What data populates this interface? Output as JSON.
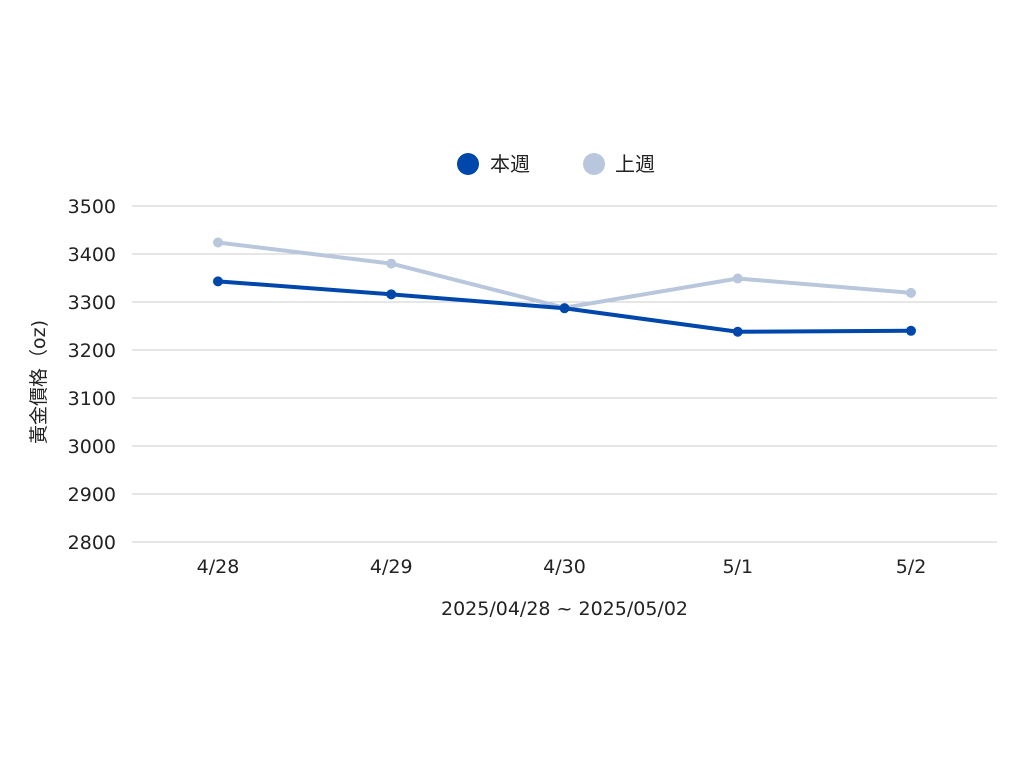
{
  "chart_data": {
    "type": "line",
    "categories": [
      "4/28",
      "4/29",
      "4/30",
      "5/1",
      "5/2"
    ],
    "series": [
      {
        "name": "本週",
        "color": "#0047ab",
        "values": [
          3343,
          3316,
          3287,
          3238,
          3240
        ]
      },
      {
        "name": "上週",
        "color": "#b8c7dc",
        "values": [
          3424,
          3380,
          3288,
          3349,
          3319
        ]
      }
    ],
    "xlabel": "2025/04/28 ~ 2025/05/02",
    "ylabel": "黃金價格（oz)",
    "ylim": [
      2800,
      3500
    ],
    "yticks": [
      2800,
      2900,
      3000,
      3100,
      3200,
      3300,
      3400,
      3500
    ],
    "grid": true,
    "legend_position": "top-center"
  }
}
